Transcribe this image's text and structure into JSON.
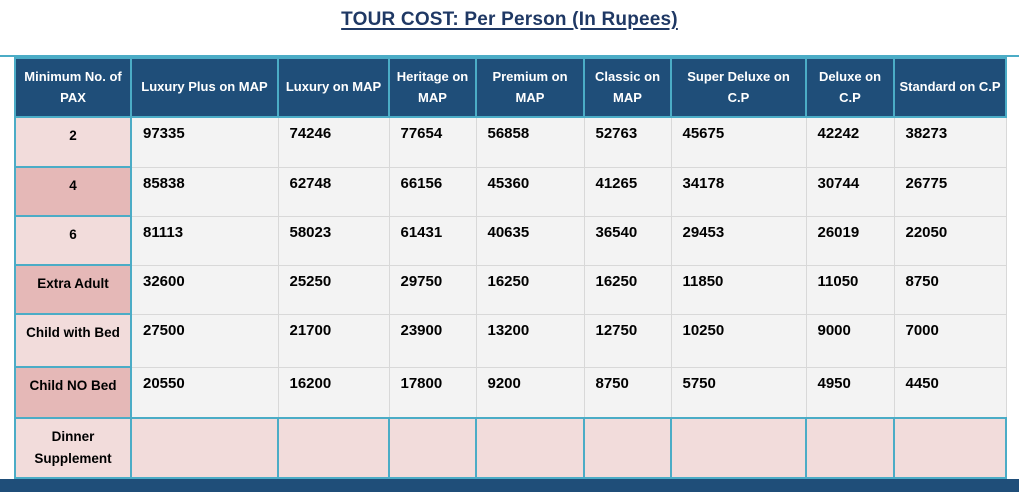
{
  "title": "TOUR COST: Per Person (In Rupees)",
  "colors": {
    "header_background": "#1F4E79",
    "header_text": "#FFFFFF",
    "border_teal": "#4BACC6",
    "row_label_pink_light": "#F2DCDB",
    "row_label_pink_dark": "#E5B8B7",
    "data_cell_background": "#F3F3F3",
    "data_cell_border": "#D8D8D8",
    "title_color": "#1F3864",
    "bottom_bar": "#1F4E79"
  },
  "table": {
    "columns": [
      "Minimum No. of PAX",
      "Luxury Plus on MAP",
      "Luxury on MAP",
      "Heritage on MAP",
      "Premium on MAP",
      "Classic on MAP",
      "Super Deluxe on C.P",
      "Deluxe on C.P",
      "Standard on C.P"
    ],
    "rows": [
      {
        "label": "2",
        "values": [
          "97335",
          "74246",
          "77654",
          "56858",
          "52763",
          "45675",
          "42242",
          "38273"
        ]
      },
      {
        "label": "4",
        "values": [
          "85838",
          "62748",
          "66156",
          "45360",
          "41265",
          "34178",
          "30744",
          "26775"
        ]
      },
      {
        "label": "6",
        "values": [
          "81113",
          "58023",
          "61431",
          "40635",
          "36540",
          "29453",
          "26019",
          "22050"
        ]
      },
      {
        "label": "Extra Adult",
        "values": [
          "32600",
          "25250",
          "29750",
          "16250",
          "16250",
          "11850",
          "11050",
          "8750"
        ]
      },
      {
        "label": "Child with Bed",
        "values": [
          "27500",
          "21700",
          "23900",
          "13200",
          "12750",
          "10250",
          "9000",
          "7000"
        ]
      },
      {
        "label": "Child NO Bed",
        "values": [
          "20550",
          "16200",
          "17800",
          "9200",
          "8750",
          "5750",
          "4950",
          "4450"
        ]
      },
      {
        "label": "Dinner Supplement",
        "values": [
          "",
          "",
          "",
          "",
          "",
          "",
          "",
          ""
        ],
        "pink_row": true
      }
    ]
  }
}
